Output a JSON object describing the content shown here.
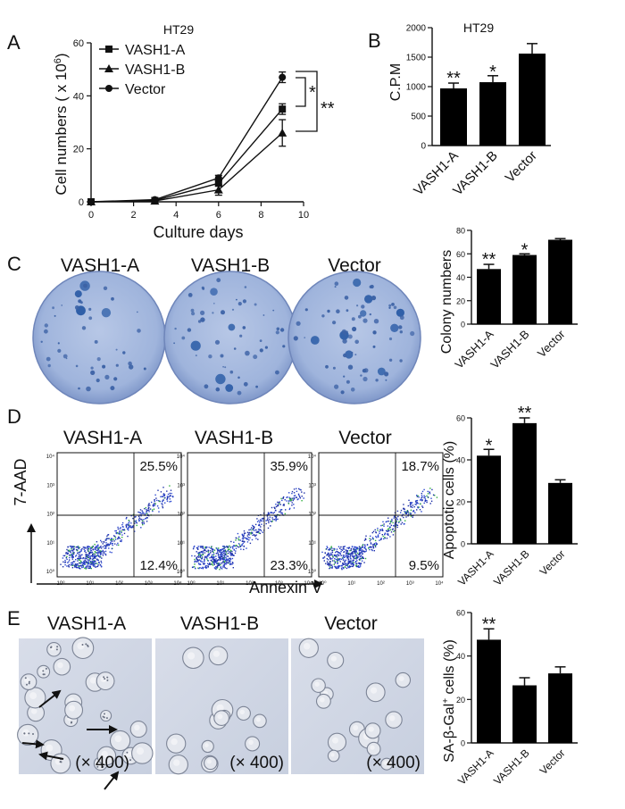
{
  "panels": {
    "A": {
      "letter": "A",
      "cell_line": "HT29",
      "ylabel": "Cell numbers ( x 10",
      "ylabel_exp": "6",
      "ylabel_end": ")",
      "xlabel": "Culture days",
      "sig_inner": "*",
      "sig_outer": "**"
    },
    "B": {
      "letter": "B",
      "cell_line": "HT29",
      "ylabel": "C.P.M"
    },
    "C": {
      "letter": "C",
      "ylabel": "Colony numbers",
      "headers": [
        "VASH1-A",
        "VASH1-B",
        "Vector"
      ]
    },
    "D": {
      "letter": "D",
      "ylabel": "Apoptotic cells (%)",
      "headers": [
        "VASH1-A",
        "VASH1-B",
        "Vector"
      ],
      "flow_y_label": "7-AAD",
      "flow_x_label": "Annexin V",
      "quadrants": [
        {
          "upper_right": "25.5%",
          "lower_right": "12.4%"
        },
        {
          "upper_right": "35.9%",
          "lower_right": "23.3%"
        },
        {
          "upper_right": "18.7%",
          "lower_right": "9.5%"
        }
      ],
      "axis_ticks": [
        "10⁰",
        "10¹",
        "10²",
        "10³",
        "10⁴"
      ]
    },
    "E": {
      "letter": "E",
      "ylabel_pre": "SA-β-Gal",
      "ylabel_sup": "+",
      "ylabel_post": " cells (%)",
      "headers": [
        "VASH1-A",
        "VASH1-B",
        "Vector"
      ],
      "magnification": "(× 400)"
    }
  },
  "chart_data": [
    {
      "id": "A",
      "type": "line",
      "title": "HT29",
      "xlabel": "Culture days",
      "ylabel": "Cell numbers ( x 10^6)",
      "x": [
        0,
        3,
        6,
        9
      ],
      "xlim": [
        0,
        10
      ],
      "ylim": [
        0,
        60
      ],
      "xticks": [
        0,
        2,
        4,
        6,
        8,
        10
      ],
      "yticks": [
        0,
        20,
        40,
        60
      ],
      "legend_position": "top-left",
      "series": [
        {
          "name": "VASH1-A",
          "marker": "square",
          "values": [
            0,
            0.5,
            7,
            35
          ],
          "err": [
            0,
            0.3,
            1,
            2
          ]
        },
        {
          "name": "VASH1-B",
          "marker": "triangle",
          "values": [
            0,
            0.3,
            4.5,
            26
          ],
          "err": [
            0,
            0.3,
            2,
            5
          ]
        },
        {
          "name": "Vector",
          "marker": "circle",
          "values": [
            0,
            0.8,
            9,
            47
          ],
          "err": [
            0,
            0.3,
            1,
            2
          ]
        }
      ]
    },
    {
      "id": "B",
      "type": "bar",
      "title": "HT29",
      "ylabel": "C.P.M",
      "categories": [
        "VASH1-A",
        "VASH1-B",
        "Vector"
      ],
      "values": [
        970,
        1075,
        1560
      ],
      "err": [
        90,
        110,
        170
      ],
      "significance": [
        "**",
        "*",
        ""
      ],
      "ylim": [
        0,
        2000
      ],
      "yticks": [
        0,
        500,
        1000,
        1500,
        2000
      ]
    },
    {
      "id": "C",
      "type": "bar",
      "ylabel": "Colony numbers",
      "categories": [
        "VASH1-A",
        "VASH1-B",
        "Vector"
      ],
      "values": [
        47,
        59,
        72
      ],
      "err": [
        4,
        1,
        1
      ],
      "significance": [
        "**",
        "*",
        ""
      ],
      "ylim": [
        0,
        80
      ],
      "yticks": [
        0,
        20,
        40,
        60,
        80
      ]
    },
    {
      "id": "D",
      "type": "bar",
      "ylabel": "Apoptotic cells (%)",
      "categories": [
        "VASH1-A",
        "VASH1-B",
        "Vector"
      ],
      "values": [
        42,
        57.5,
        29
      ],
      "err": [
        3,
        2.5,
        1.5
      ],
      "significance": [
        "*",
        "**",
        ""
      ],
      "ylim": [
        0,
        60
      ],
      "yticks": [
        0,
        20,
        40,
        60
      ]
    },
    {
      "id": "E",
      "type": "bar",
      "ylabel": "SA-β-Gal+ cells (%)",
      "categories": [
        "VASH1-A",
        "VASH1-B",
        "Vector"
      ],
      "values": [
        47.5,
        26.5,
        32
      ],
      "err": [
        5,
        3.5,
        3
      ],
      "significance": [
        "**",
        "",
        ""
      ],
      "ylim": [
        0,
        60
      ],
      "yticks": [
        0,
        20,
        40,
        60
      ]
    }
  ]
}
